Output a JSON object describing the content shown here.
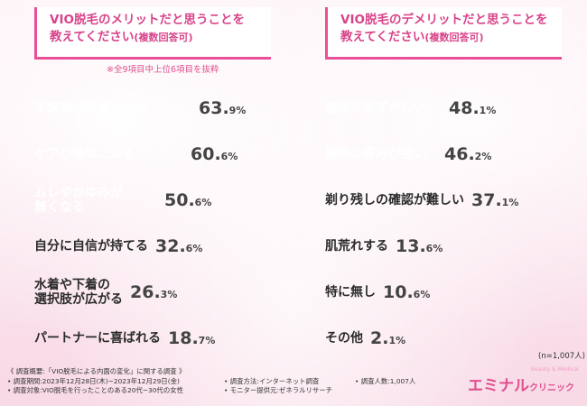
{
  "left": {
    "title_line1": "VIO脱毛のメリットだと思うことを",
    "title_line2": "教えてください",
    "title_suffix": "(複数回答可)",
    "note": "※全9項目中上位6項目を抜粋"
  },
  "right": {
    "title_line1": "VIO脱毛のデメリットだと思うことを",
    "title_line2": "教えてください",
    "title_suffix": "(複数回答可)"
  },
  "chart_data": [
    {
      "type": "bar",
      "orientation": "horizontal",
      "categories": [
        "不快感が軽減される",
        "ケアが簡単になる",
        "ムレやかゆみが\n無くなる",
        "自分に自信が持てる",
        "水着や下着の\n選択肢が広がる",
        "パートナーに喜ばれる"
      ],
      "values": [
        63.9,
        60.6,
        50.6,
        32.6,
        26.3,
        18.7
      ],
      "unit": "%",
      "colors": [
        "#41b8e0",
        "#e8479a",
        "#f07fc0",
        "#bdbdbd",
        "#bdbdbd",
        "#bdbdbd"
      ]
    },
    {
      "type": "bar",
      "orientation": "horizontal",
      "categories": [
        "施術が恥ずかしい",
        "施術の痛みが強い",
        "剃り残しの確認が難しい",
        "肌荒れする",
        "特に無し",
        "その他"
      ],
      "values": [
        48.1,
        46.2,
        37.1,
        13.6,
        10.6,
        2.1
      ],
      "unit": "%",
      "colors": [
        "#41b8e0",
        "#e8479a",
        "#bdbdbd",
        "#bdbdbd",
        "#bdbdbd",
        "#bdbdbd"
      ]
    }
  ],
  "sample_size": "(n=1,007人)",
  "footer": {
    "line1": "《 調査概要:「VIO脱毛による内面の変化」に関する調査 》",
    "period": "• 調査期間:2023年12月28日(木)~2023年12月29日(金)",
    "method": "• 調査方法:インターネット調査",
    "count": "• 調査人数:1,007人",
    "target": "• 調査対象:VIO脱毛を行ったことのある20代~30代の女性",
    "monitor": "• モニター提供元:ゼネラルリサーチ"
  },
  "logo": {
    "main": "エミナル",
    "sub": "クリニック",
    "tag": "Beauty & Medical"
  }
}
